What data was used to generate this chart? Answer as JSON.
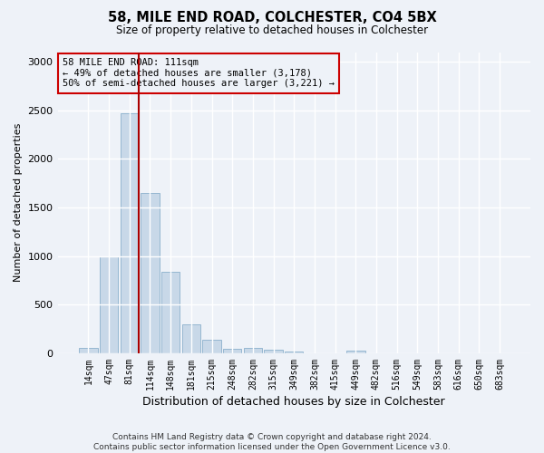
{
  "title_line1": "58, MILE END ROAD, COLCHESTER, CO4 5BX",
  "title_line2": "Size of property relative to detached houses in Colchester",
  "xlabel": "Distribution of detached houses by size in Colchester",
  "ylabel": "Number of detached properties",
  "annotation_line1": "58 MILE END ROAD: 111sqm",
  "annotation_line2": "← 49% of detached houses are smaller (3,178)",
  "annotation_line3": "50% of semi-detached houses are larger (3,221) →",
  "bar_labels": [
    "14sqm",
    "47sqm",
    "81sqm",
    "114sqm",
    "148sqm",
    "181sqm",
    "215sqm",
    "248sqm",
    "282sqm",
    "315sqm",
    "349sqm",
    "382sqm",
    "415sqm",
    "449sqm",
    "482sqm",
    "516sqm",
    "549sqm",
    "583sqm",
    "616sqm",
    "650sqm",
    "683sqm"
  ],
  "bar_values": [
    60,
    1000,
    2470,
    1650,
    840,
    300,
    140,
    50,
    60,
    40,
    20,
    0,
    0,
    30,
    0,
    0,
    0,
    0,
    0,
    0,
    0
  ],
  "bar_color": "#c8d8e8",
  "bar_edge_color": "#8ab0cc",
  "vline_color": "#aa0000",
  "annotation_box_color": "#cc0000",
  "footer_line1": "Contains HM Land Registry data © Crown copyright and database right 2024.",
  "footer_line2": "Contains public sector information licensed under the Open Government Licence v3.0.",
  "background_color": "#eef2f8",
  "grid_color": "#ffffff",
  "ylim": [
    0,
    3100
  ],
  "yticks": [
    0,
    500,
    1000,
    1500,
    2000,
    2500,
    3000
  ]
}
